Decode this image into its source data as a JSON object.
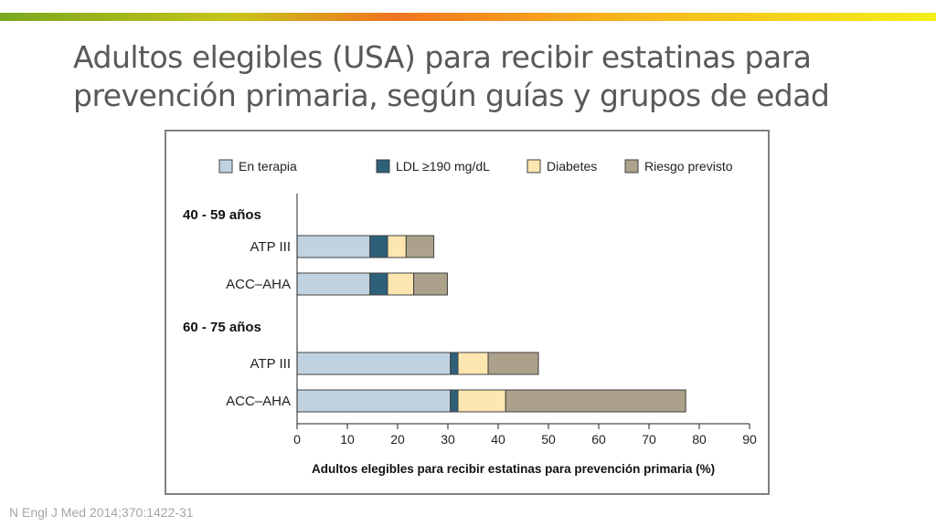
{
  "slide": {
    "title": "Adultos elegibles (USA) para recibir estatinas para prevención primaria, según guías y grupos de edad",
    "citation": "N Engl J Med 2014;370:1422-31"
  },
  "colors": {
    "en_terapia": "#c1d3e0",
    "ldl": "#2d6079",
    "diabetes": "#fde6b0",
    "riesgo": "#aca28b",
    "bar_stroke": "#404040"
  },
  "chart_data": {
    "type": "bar",
    "orientation": "horizontal",
    "stacked": true,
    "xlabel": "Adultos elegibles para recibir estatinas para prevención primaria (%)",
    "xlim": [
      0,
      90
    ],
    "xticks": [
      0,
      10,
      20,
      30,
      40,
      50,
      60,
      70,
      80,
      90
    ],
    "legend_position": "top",
    "grid": false,
    "groups": [
      {
        "name": "40 - 59 años",
        "rows": [
          {
            "label": "ATP III",
            "values": [
              14.5,
              3.5,
              3.7,
              5.5
            ]
          },
          {
            "label": "ACC–AHA",
            "values": [
              14.5,
              3.5,
              5.2,
              6.7
            ]
          }
        ]
      },
      {
        "name": "60 - 75 años",
        "rows": [
          {
            "label": "ATP III",
            "values": [
              30.5,
              1.5,
              6.0,
              10.0
            ]
          },
          {
            "label": "ACC–AHA",
            "values": [
              30.5,
              1.5,
              9.5,
              35.8
            ]
          }
        ]
      }
    ],
    "series": [
      {
        "name": "En terapia",
        "color": "#c1d3e0"
      },
      {
        "name": "LDL ≥190 mg/dL",
        "color": "#2d6079"
      },
      {
        "name": "Diabetes",
        "color": "#fde6b0"
      },
      {
        "name": "Riesgo previsto",
        "color": "#aca28b"
      }
    ]
  }
}
